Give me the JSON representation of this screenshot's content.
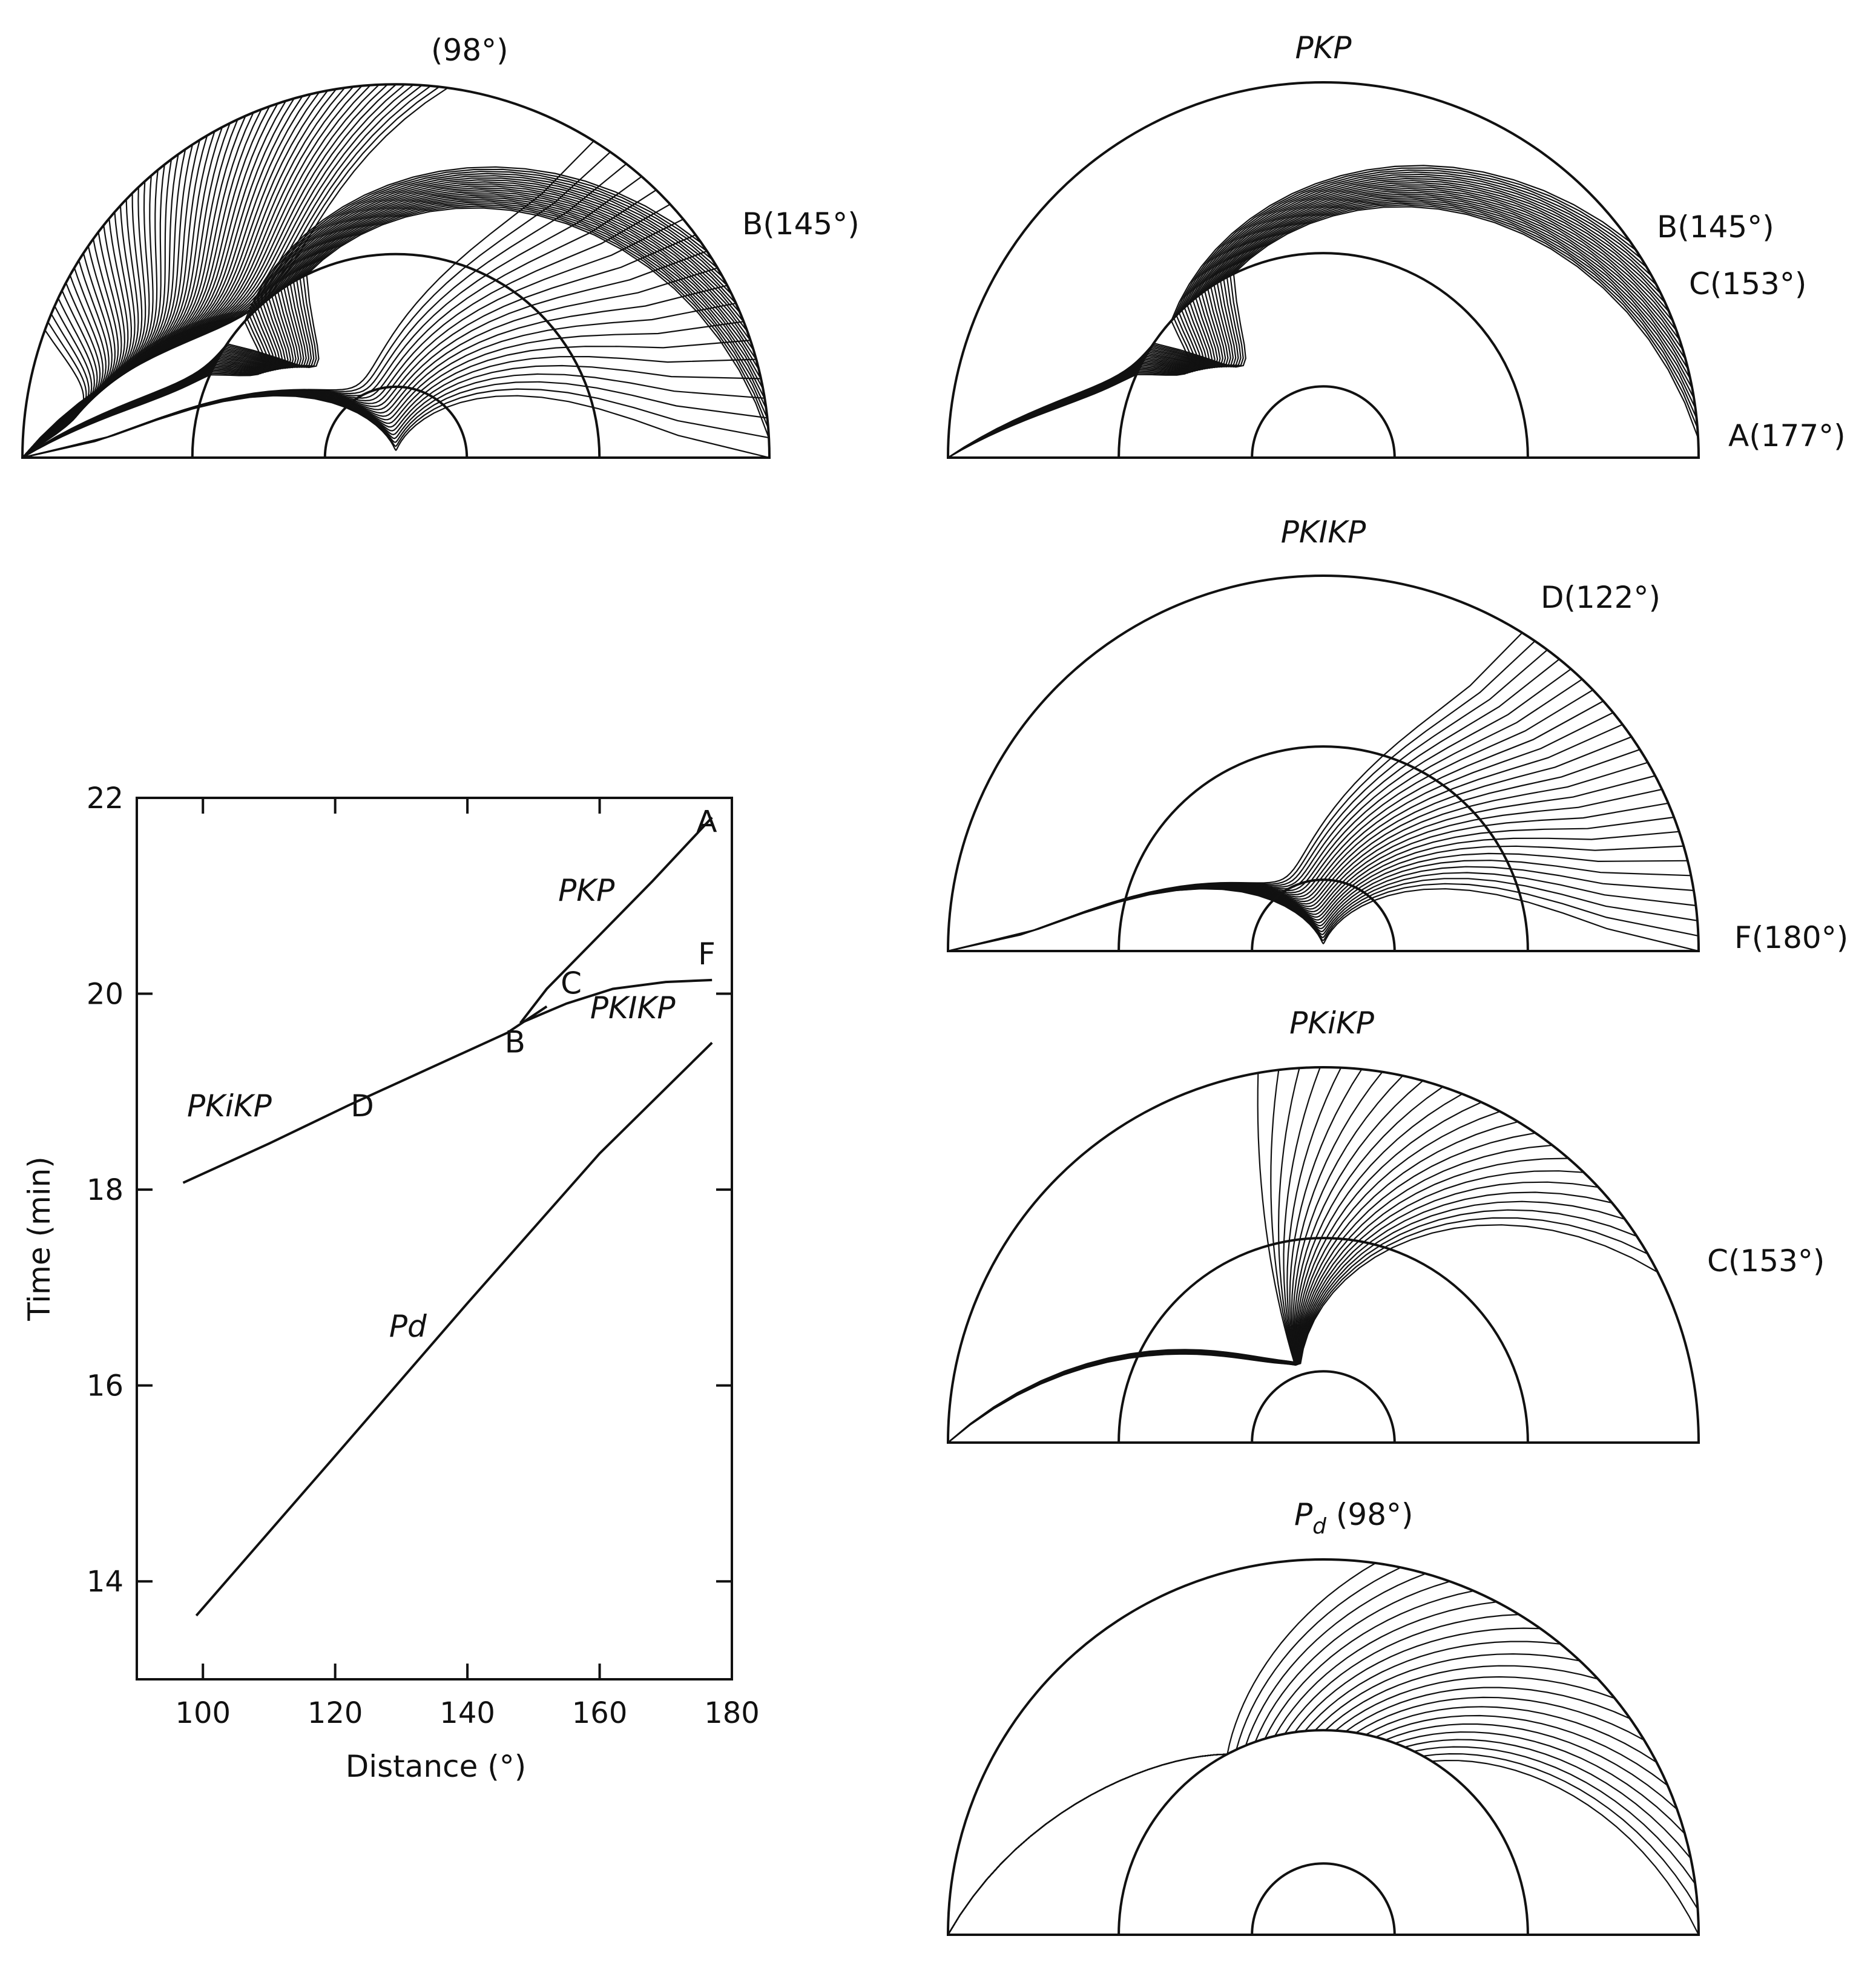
{
  "panels": [
    {
      "id": "all",
      "title": "",
      "labels": [
        {
          "text": "(98°)"
        },
        {
          "text": "B(145°)"
        }
      ]
    },
    {
      "id": "pkp",
      "title": "PKP",
      "labels": [
        {
          "text": "B(145°)"
        },
        {
          "text": "C(153°)"
        },
        {
          "text": "A(177°)"
        }
      ]
    },
    {
      "id": "pkikp",
      "title": "PKIKP",
      "labels": [
        {
          "text": "D(122°)"
        },
        {
          "text": "F(180°)"
        }
      ]
    },
    {
      "id": "pkikp_small",
      "title": "PKiKP",
      "labels": [
        {
          "text": "C(153°)"
        }
      ]
    },
    {
      "id": "pd",
      "title_main": "P",
      "title_sub": "d",
      "title_rest": " (98°)",
      "labels": []
    }
  ],
  "chart_data": {
    "type": "line",
    "xlabel": "Distance (°)",
    "ylabel": "Time (min)",
    "xlim": [
      90,
      180
    ],
    "ylim": [
      13,
      22
    ],
    "xticks": [
      100,
      120,
      140,
      160,
      180
    ],
    "yticks": [
      14,
      16,
      18,
      20,
      22
    ],
    "series": [
      {
        "name": "PKP",
        "x": [
          148,
          152,
          160,
          168,
          177
        ],
        "y": [
          19.7,
          20.05,
          20.6,
          21.15,
          21.8
        ]
      },
      {
        "name": "PKIKP",
        "x": [
          148,
          155,
          162,
          170,
          177
        ],
        "y": [
          19.7,
          19.9,
          20.05,
          20.12,
          20.14
        ]
      },
      {
        "name": "PKiKP",
        "x": [
          97,
          110,
          122,
          134,
          146,
          152
        ],
        "y": [
          18.07,
          18.47,
          18.86,
          19.23,
          19.6,
          19.87
        ]
      },
      {
        "name": "Pd",
        "x": [
          99,
          120,
          140,
          160,
          177
        ],
        "y": [
          13.65,
          15.28,
          16.84,
          18.37,
          19.5
        ]
      }
    ],
    "point_labels": [
      {
        "text": "A",
        "x": 176.2,
        "y": 21.65
      },
      {
        "text": "F",
        "x": 176.2,
        "y": 20.3
      },
      {
        "text": "C",
        "x": 155.7,
        "y": 20.0
      },
      {
        "text": "B",
        "x": 147.2,
        "y": 19.4
      },
      {
        "text": "D",
        "x": 124.1,
        "y": 18.75
      }
    ]
  }
}
